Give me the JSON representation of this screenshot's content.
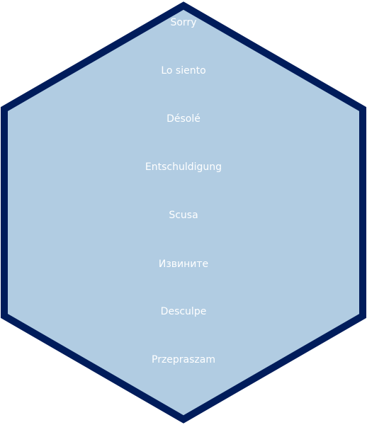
{
  "colors": {
    "hex_fill": "#b1cce2",
    "hex_stroke": "#001c5b",
    "text": "#ffffff"
  },
  "phrases": [
    "Sorry",
    "Lo siento",
    "Désolé",
    "Entschuldigung",
    "Scusa",
    "Извините",
    "Desculpe",
    "Przepraszam"
  ]
}
